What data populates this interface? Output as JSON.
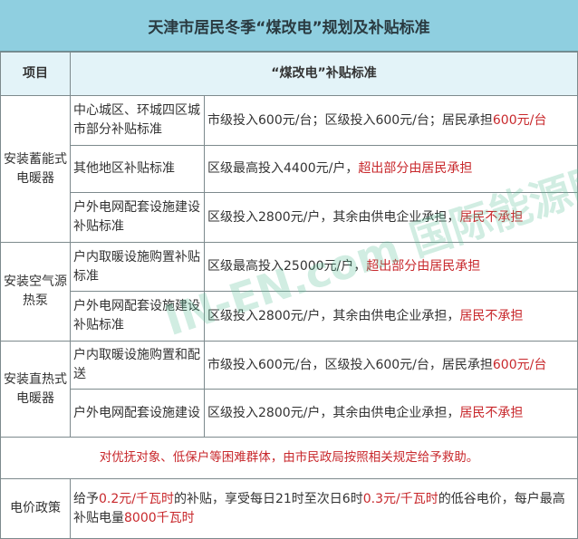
{
  "title": "天津市居民冬季“煤改电”规划及补贴标准",
  "header": {
    "item": "项目",
    "standard": "“煤改电”补贴标准"
  },
  "groups": [
    {
      "name": "安装蓄能式电暖器",
      "rows": [
        {
          "sub": "中心城区、环城四区城市部分补贴标准",
          "text": "市级投入600元/台；区级投入600元/台；居民承担",
          "red": "600元/台"
        },
        {
          "sub": "其他地区补贴标准",
          "text": "区级最高投入4400元/户，",
          "red": "超出部分由居民承担"
        },
        {
          "sub": "户外电网配套设施建设补贴标准",
          "text": "区级投入2800元/户，其余由供电企业承担，",
          "red": "居民不承担"
        }
      ]
    },
    {
      "name": "安装空气源热泵",
      "rows": [
        {
          "sub": "户内取暖设施购置补贴标准",
          "text": "区级最高投入25000元/户，",
          "red": "超出部分由居民承担"
        },
        {
          "sub": "户外电网配套设施建设补贴标准",
          "text": "区级投入2800元/户，其余由供电企业承担，",
          "red": "居民不承担"
        }
      ]
    },
    {
      "name": "安装直热式电暖器",
      "rows": [
        {
          "sub": "户内取暖设施购置和配送",
          "text": "市级投入600元/台，区级投入600元/台，居民承担",
          "red": "600元/台"
        },
        {
          "sub": "户外电网配套设施建设",
          "text": "区级投入2800元/户，其余由供电企业承担，",
          "red": "居民不承担"
        }
      ]
    }
  ],
  "note": "对优抚对象、低保户等困难群体，由市民政局按照相关规定给予救助。",
  "price": {
    "label": "电价政策",
    "p1": "给予",
    "r1": "0.2元/千瓦时",
    "p2": "的补贴，享受每日21时至次日6时",
    "r2": "0.3元/千瓦时",
    "p3": "的低谷电价，每户最高补贴电量",
    "r3": "8000千瓦时"
  },
  "watermark": "IN-EN.com 国际能源网"
}
